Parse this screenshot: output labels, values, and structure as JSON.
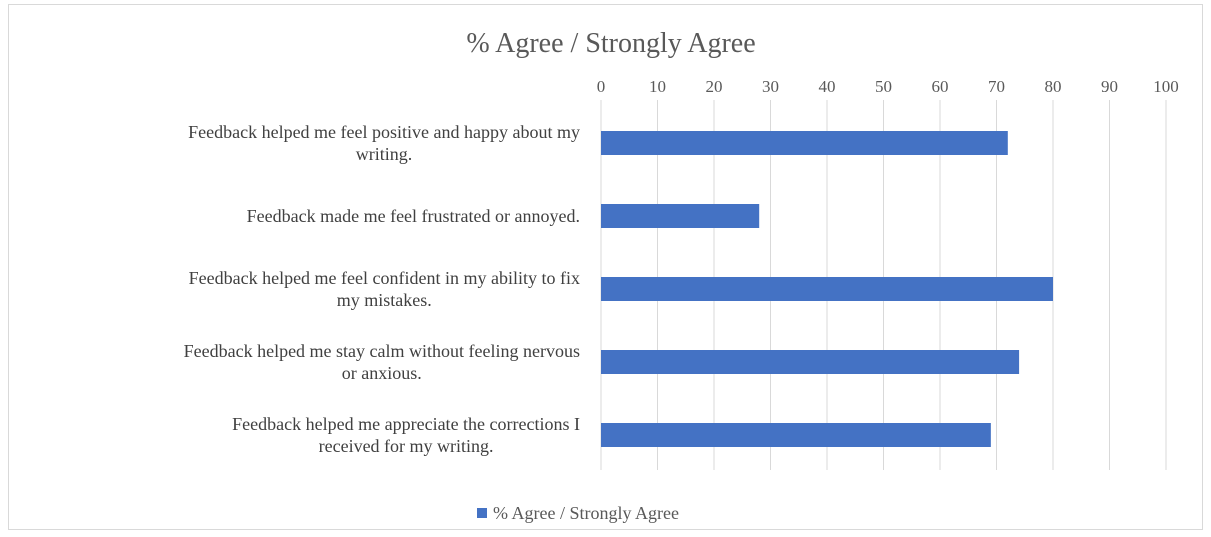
{
  "chart_data": {
    "type": "bar",
    "orientation": "horizontal",
    "title": "% Agree / Strongly Agree",
    "categories": [
      [
        "Feedback helped me feel positive and happy about my",
        "writing."
      ],
      [
        "Feedback made me feel frustrated or annoyed."
      ],
      [
        "Feedback helped me feel confident in my ability to fix",
        "my mistakes."
      ],
      [
        "Feedback helped me stay calm without feeling nervous",
        "or anxious."
      ],
      [
        "Feedback helped me appreciate the corrections I",
        "received for my writing."
      ]
    ],
    "series": [
      {
        "name": "% Agree / Strongly Agree",
        "values": [
          72,
          28,
          80,
          74,
          69
        ],
        "color": "#4472c4"
      }
    ],
    "xlim": [
      0,
      100
    ],
    "xticks": [
      "0",
      "10",
      "20",
      "30",
      "40",
      "50",
      "60",
      "70",
      "80",
      "90",
      "100"
    ],
    "axis_position": "top",
    "grid": true,
    "legend": "bottom",
    "gridline_color": "#d9d9d9"
  }
}
